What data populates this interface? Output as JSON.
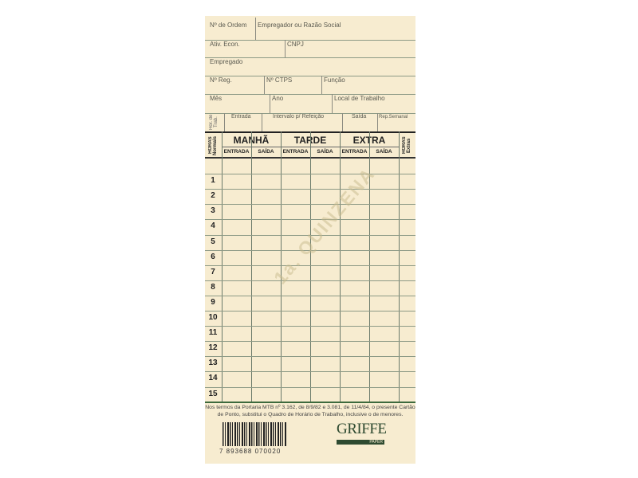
{
  "header": {
    "ordem": "Nº de Ordem",
    "empregador": "Empregador ou Razão Social",
    "ativ": "Ativ. Econ.",
    "cnpj": "CNPJ",
    "empregado": "Empregado",
    "reg": "Nº Reg.",
    "ctps": "Nº CTPS",
    "funcao": "Função",
    "mes": "Mês",
    "ano": "Ano",
    "local": "Local de Trabalho",
    "hor_trab": "Hor. de Trab.",
    "entrada": "Entrada",
    "intervalo": "Intervalo p/ Refeição",
    "saida": "Saída",
    "rep": "Rep.Semanal"
  },
  "table": {
    "horas_normais": "HORAS Normais",
    "horas_extras": "HORAS Extras",
    "groups": [
      "MANHÃ",
      "TARDE",
      "EXTRA"
    ],
    "entrada": "ENTRADA",
    "saida": "SAÍDA",
    "rows": [
      "1",
      "2",
      "3",
      "4",
      "5",
      "6",
      "7",
      "8",
      "9",
      "10",
      "11",
      "12",
      "13",
      "14",
      "15"
    ]
  },
  "watermark": "1a. QUINZENA",
  "footer": {
    "line1": "Nos termos da Portaria MTB nº 3.162, de 8/9/82 e 3.081, de 11/4/84, o presente Cartão",
    "line2": "de Ponto, substitui o Quadro de Horário de Trabalho, inclusive o de menores.",
    "barcode": "7 893688 070020",
    "brand": "GRIFFE",
    "brand_sub": "PAPER"
  }
}
